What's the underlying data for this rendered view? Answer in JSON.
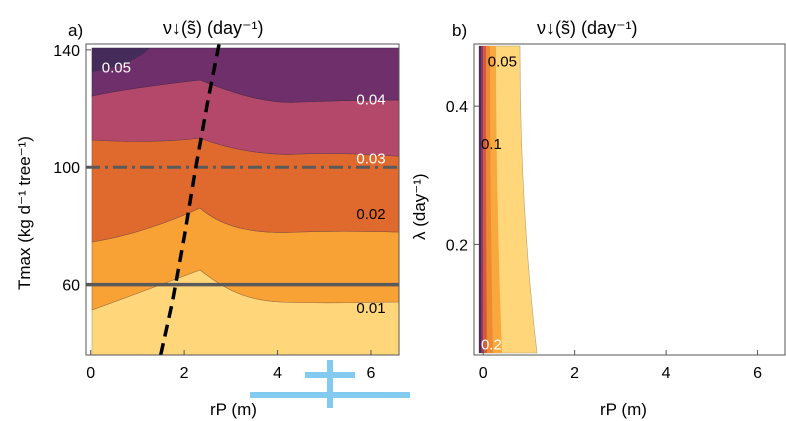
{
  "figure": {
    "panel_a_label": "a)",
    "panel_b_label": "b)",
    "panel_a_title": "ν↓(s̃) (day⁻¹)",
    "panel_b_title": "ν↓(s̃) (day⁻¹)",
    "watermark_color": "#1ea0e6"
  },
  "chart_data": [
    {
      "type": "contour",
      "panel": "a",
      "title": "ν↓(s̃) (day⁻¹)",
      "xlabel": "rP (m)",
      "ylabel": "Tmax (kg d⁻¹ tree⁻¹)",
      "xlim": [
        -0.1,
        6.6
      ],
      "ylim": [
        36,
        142
      ],
      "xticks": [
        0,
        2,
        4,
        6
      ],
      "yticks": [
        60,
        100,
        140
      ],
      "grid": false,
      "contour_levels": [
        0.01,
        0.02,
        0.03,
        0.04,
        0.05
      ],
      "contour_labels": [
        {
          "text": "0.05",
          "x": 0.55,
          "y": 134,
          "color": "#ffffff"
        },
        {
          "text": "0.04",
          "x": 6.0,
          "y": 123,
          "color": "#ffffff"
        },
        {
          "text": "0.03",
          "x": 6.0,
          "y": 103,
          "color": "#ffffff"
        },
        {
          "text": "0.02",
          "x": 6.0,
          "y": 84,
          "color": "#000000"
        },
        {
          "text": "0.01",
          "x": 6.0,
          "y": 52,
          "color": "#000000"
        }
      ],
      "bands": [
        {
          "level": "0.00-0.01",
          "color": "#ffffff"
        },
        {
          "level": "0.01-0.02",
          "color": "#ffd67a"
        },
        {
          "level": "0.02-0.03",
          "color": "#f8a135"
        },
        {
          "level": "0.03-0.04",
          "color": "#e06a2e"
        },
        {
          "level": "0.04-0.05",
          "color": "#b4486b"
        },
        {
          "level": "0.05+",
          "color": "#6e2f6a"
        }
      ],
      "reference_lines": [
        {
          "orientation": "horizontal",
          "y": 60,
          "style": "solid",
          "color": "#5a5a5a"
        },
        {
          "orientation": "horizontal",
          "y": 100,
          "style": "dashed",
          "color": "#5a5a5a"
        }
      ],
      "dashed_curve": {
        "color": "#000000",
        "x": [
          1.5,
          1.75,
          2.0,
          2.25,
          2.5,
          2.75
        ],
        "y": [
          36,
          54,
          76,
          100,
          122,
          142
        ]
      }
    },
    {
      "type": "contour",
      "panel": "b",
      "title": "ν↓(s̃) (day⁻¹)",
      "xlabel": "rP (m)",
      "ylabel": "λ (day⁻¹)",
      "xlim": [
        -0.2,
        6.6
      ],
      "ylim": [
        0.04,
        0.49
      ],
      "xticks": [
        0,
        2,
        4,
        6
      ],
      "yticks": [
        0.2,
        0.4
      ],
      "grid": false,
      "contour_labels": [
        {
          "text": "0.05",
          "x": 0.42,
          "y": 0.465,
          "color": "#000000"
        },
        {
          "text": "0.1",
          "x": 0.18,
          "y": 0.345,
          "color": "#000000"
        },
        {
          "text": "0.2",
          "x": 0.18,
          "y": 0.055,
          "color": "#ffffff"
        }
      ],
      "bands_from_left": [
        {
          "color": "#4a2a5e",
          "x_right": 0.05
        },
        {
          "color": "#8e3a66",
          "x_right": 0.12
        },
        {
          "color": "#d35a3a",
          "x_right": 0.22
        },
        {
          "color": "#ee8a33",
          "x_right": 0.35
        },
        {
          "color": "#f8a83c",
          "x_right": 0.6
        },
        {
          "color": "#ffd67a",
          "x_right_top": 0.72,
          "x_right_bottom": 1.2
        }
      ]
    }
  ]
}
